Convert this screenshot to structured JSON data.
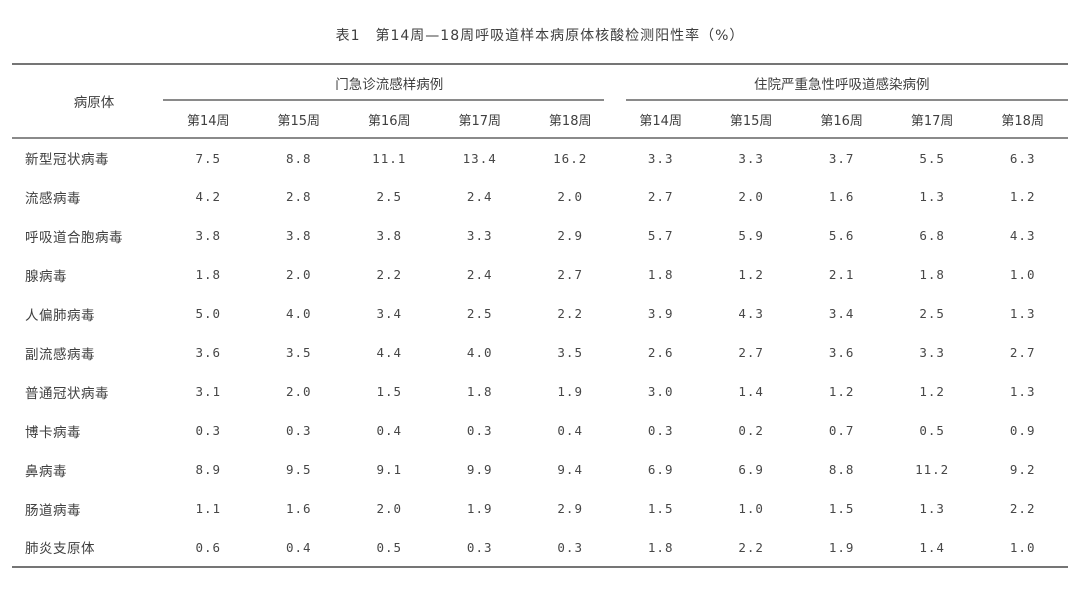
{
  "title": "表1　第14周—18周呼吸道样本病原体核酸检测阳性率（%）",
  "colors": {
    "text": "#3f3f3f",
    "rule_heavy": "#757575",
    "rule_light": "#8a8a8a",
    "background": "#ffffff"
  },
  "table": {
    "pathogen_header": "病原体",
    "groups": [
      {
        "label": "门急诊流感样病例",
        "weeks": [
          "第14周",
          "第15周",
          "第16周",
          "第17周",
          "第18周"
        ]
      },
      {
        "label": "住院严重急性呼吸道感染病例",
        "weeks": [
          "第14周",
          "第15周",
          "第16周",
          "第17周",
          "第18周"
        ]
      }
    ],
    "rows": [
      {
        "pathogen": "新型冠状病毒",
        "outpatient": [
          "7.5",
          "8.8",
          "11.1",
          "13.4",
          "16.2"
        ],
        "inpatient": [
          "3.3",
          "3.3",
          "3.7",
          "5.5",
          "6.3"
        ]
      },
      {
        "pathogen": "流感病毒",
        "outpatient": [
          "4.2",
          "2.8",
          "2.5",
          "2.4",
          "2.0"
        ],
        "inpatient": [
          "2.7",
          "2.0",
          "1.6",
          "1.3",
          "1.2"
        ]
      },
      {
        "pathogen": "呼吸道合胞病毒",
        "outpatient": [
          "3.8",
          "3.8",
          "3.8",
          "3.3",
          "2.9"
        ],
        "inpatient": [
          "5.7",
          "5.9",
          "5.6",
          "6.8",
          "4.3"
        ]
      },
      {
        "pathogen": "腺病毒",
        "outpatient": [
          "1.8",
          "2.0",
          "2.2",
          "2.4",
          "2.7"
        ],
        "inpatient": [
          "1.8",
          "1.2",
          "2.1",
          "1.8",
          "1.0"
        ]
      },
      {
        "pathogen": "人偏肺病毒",
        "outpatient": [
          "5.0",
          "4.0",
          "3.4",
          "2.5",
          "2.2"
        ],
        "inpatient": [
          "3.9",
          "4.3",
          "3.4",
          "2.5",
          "1.3"
        ]
      },
      {
        "pathogen": "副流感病毒",
        "outpatient": [
          "3.6",
          "3.5",
          "4.4",
          "4.0",
          "3.5"
        ],
        "inpatient": [
          "2.6",
          "2.7",
          "3.6",
          "3.3",
          "2.7"
        ]
      },
      {
        "pathogen": "普通冠状病毒",
        "outpatient": [
          "3.1",
          "2.0",
          "1.5",
          "1.8",
          "1.9"
        ],
        "inpatient": [
          "3.0",
          "1.4",
          "1.2",
          "1.2",
          "1.3"
        ]
      },
      {
        "pathogen": "博卡病毒",
        "outpatient": [
          "0.3",
          "0.3",
          "0.4",
          "0.3",
          "0.4"
        ],
        "inpatient": [
          "0.3",
          "0.2",
          "0.7",
          "0.5",
          "0.9"
        ]
      },
      {
        "pathogen": "鼻病毒",
        "outpatient": [
          "8.9",
          "9.5",
          "9.1",
          "9.9",
          "9.4"
        ],
        "inpatient": [
          "6.9",
          "6.9",
          "8.8",
          "11.2",
          "9.2"
        ]
      },
      {
        "pathogen": "肠道病毒",
        "outpatient": [
          "1.1",
          "1.6",
          "2.0",
          "1.9",
          "2.9"
        ],
        "inpatient": [
          "1.5",
          "1.0",
          "1.5",
          "1.3",
          "2.2"
        ]
      },
      {
        "pathogen": "肺炎支原体",
        "outpatient": [
          "0.6",
          "0.4",
          "0.5",
          "0.3",
          "0.3"
        ],
        "inpatient": [
          "1.8",
          "2.2",
          "1.9",
          "1.4",
          "1.0"
        ]
      }
    ]
  }
}
